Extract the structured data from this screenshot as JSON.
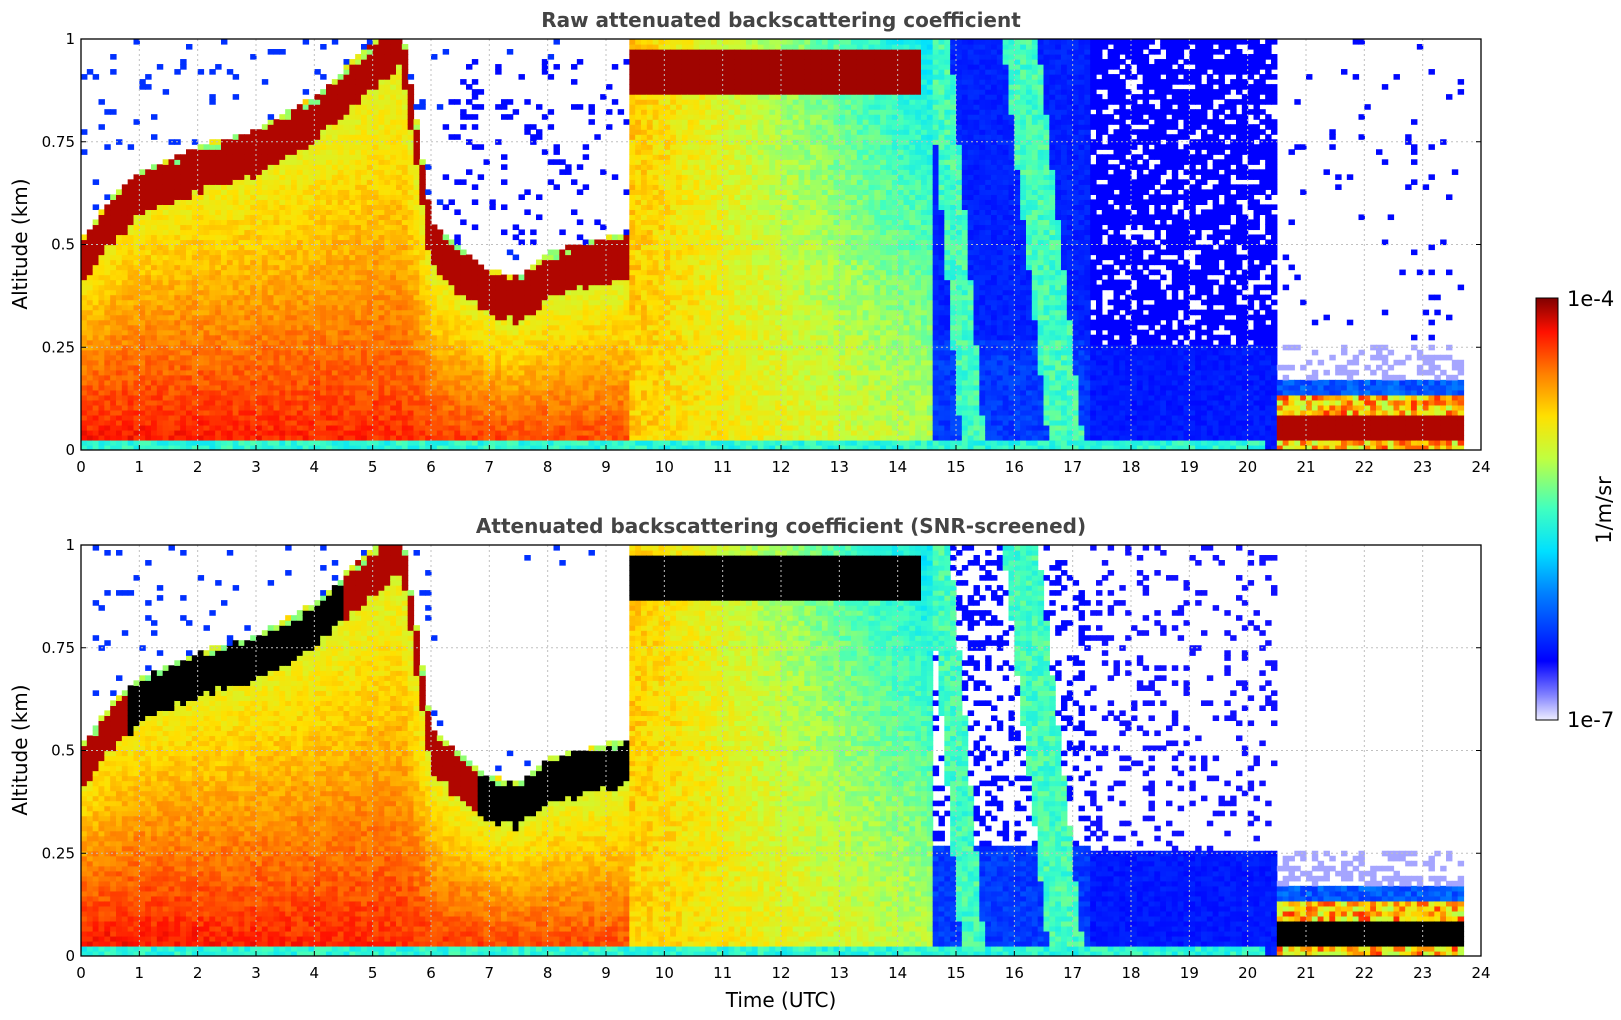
{
  "chart_data": [
    {
      "type": "heatmap",
      "title": "Raw attenuated backscattering coefficient",
      "xlabel": "",
      "ylabel": "Altitude (km)",
      "xlim": [
        0,
        24
      ],
      "ylim": [
        0,
        1
      ],
      "xticks": [
        "0",
        "1",
        "2",
        "3",
        "4",
        "5",
        "6",
        "7",
        "8",
        "9",
        "10",
        "11",
        "12",
        "13",
        "14",
        "15",
        "16",
        "17",
        "18",
        "19",
        "20",
        "21",
        "22",
        "23",
        "24"
      ],
      "yticks": [
        "0",
        "0.25",
        "0.5",
        "0.75",
        "1"
      ],
      "grid": true,
      "description_values": {
        "boundary_layer_top_km": [
          [
            0,
            0.45
          ],
          [
            1,
            0.62
          ],
          [
            2,
            0.68
          ],
          [
            3,
            0.72
          ],
          [
            4,
            0.8
          ],
          [
            5,
            0.92
          ],
          [
            6,
            0.45
          ],
          [
            7,
            0.38
          ],
          [
            8,
            0.42
          ],
          [
            9,
            0.47
          ]
        ],
        "cloud_layer_km": [
          [
            9.5,
            0.94
          ],
          [
            14.5,
            0.92
          ]
        ],
        "low_cloud_km": [
          [
            20.5,
            0.08
          ],
          [
            23.7,
            0.08
          ]
        ]
      }
    },
    {
      "type": "heatmap",
      "title": "Attenuated backscattering coefficient (SNR-screened)",
      "xlabel": "Time (UTC)",
      "ylabel": "Altitude (km)",
      "xlim": [
        0,
        24
      ],
      "ylim": [
        0,
        1
      ],
      "xticks": [
        "0",
        "1",
        "2",
        "3",
        "4",
        "5",
        "6",
        "7",
        "8",
        "9",
        "10",
        "11",
        "12",
        "13",
        "14",
        "15",
        "16",
        "17",
        "18",
        "19",
        "20",
        "21",
        "22",
        "23",
        "24"
      ],
      "yticks": [
        "0",
        "0.25",
        "0.5",
        "0.75",
        "1"
      ],
      "grid": true
    }
  ],
  "colorbar": {
    "max_label": "1e-4",
    "min_label": "1e-7",
    "units": "1/m/sr",
    "colormap": "jet",
    "log_range": [
      -7,
      -4
    ]
  },
  "colors": {
    "title": "#444444",
    "grid": "#c0c0c0",
    "saturated_screened": "#000000"
  }
}
